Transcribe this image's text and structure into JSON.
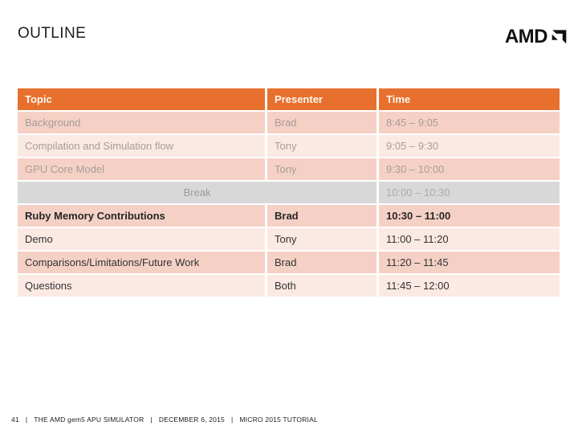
{
  "slide": {
    "title": "OUTLINE",
    "page_number": "41",
    "logo_text": "AMD",
    "footer": {
      "separator": "|",
      "presentation": "THE AMD gem5 APU SIMULATOR",
      "date": "DECEMBER 6, 2015",
      "event": "MICRO 2015 TUTORIAL"
    }
  },
  "colors": {
    "accent_orange": "#E8702E",
    "row_dark_pink": "#F5D1C5",
    "row_light_pink": "#FBE9E4",
    "break_gray": "#D8D8D8",
    "past_text_gray": "#A79C97",
    "header_text": "#FDF7EE",
    "dark_text": "#262626"
  },
  "table": {
    "headers": [
      "Topic",
      "Presenter",
      "Time"
    ],
    "rows": [
      {
        "topic": "Background",
        "presenter": "Brad",
        "time": "8:45 – 9:05",
        "status": "past"
      },
      {
        "topic": "Compilation and Simulation flow",
        "presenter": "Tony",
        "time": "9:05 – 9:30",
        "status": "past"
      },
      {
        "topic": "GPU Core Model",
        "presenter": "Tony",
        "time": "9:30 – 10:00",
        "status": "past"
      },
      {
        "topic": "Break",
        "presenter": "",
        "time": "10:00 – 10:30",
        "status": "break"
      },
      {
        "topic": "Ruby Memory Contributions",
        "presenter": "Brad",
        "time": "10:30 – 11:00",
        "status": "current"
      },
      {
        "topic": "Demo",
        "presenter": "Tony",
        "time": "11:00 – 11:20",
        "status": "upcoming"
      },
      {
        "topic": "Comparisons/Limitations/Future Work",
        "presenter": "Brad",
        "time": "11:20 – 11:45",
        "status": "upcoming"
      },
      {
        "topic": "Questions",
        "presenter": "Both",
        "time": "11:45 – 12:00",
        "status": "upcoming"
      }
    ]
  }
}
